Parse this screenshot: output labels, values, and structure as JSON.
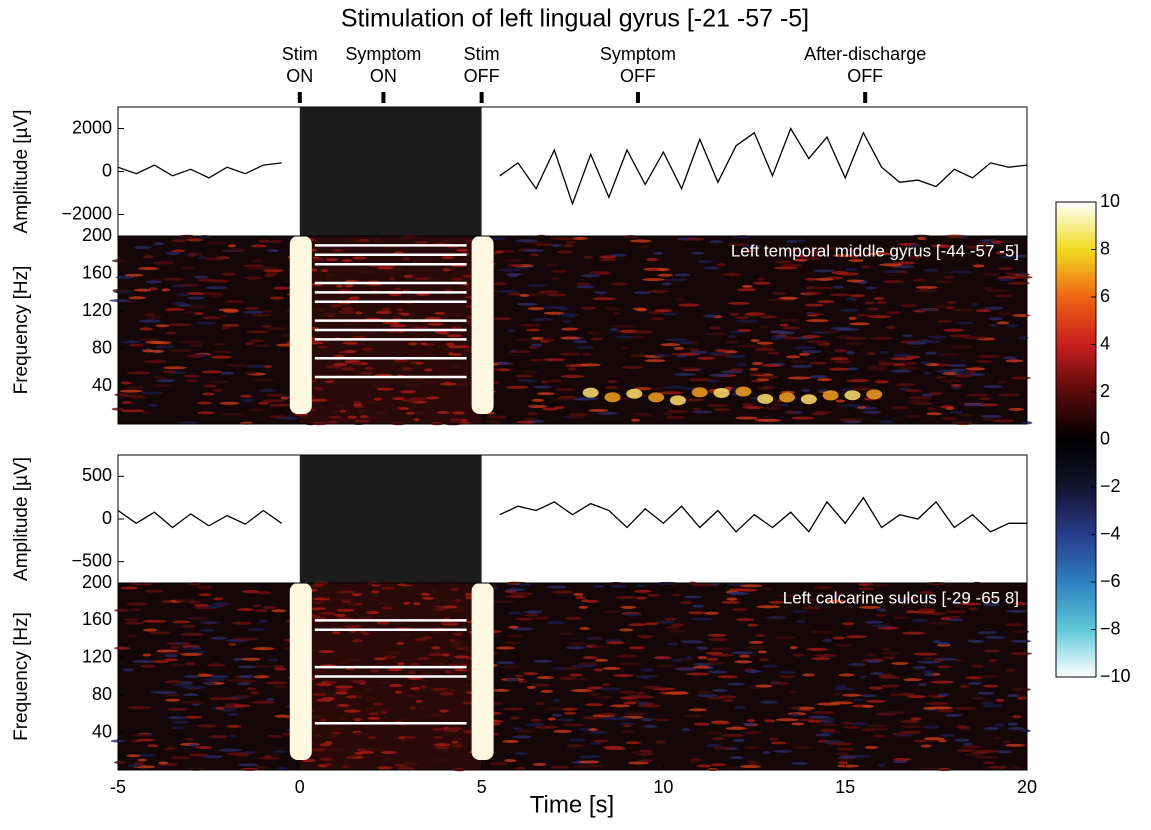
{
  "chart_data": {
    "type": "composite",
    "title": "Stimulation of left lingual gyrus [-21 -57 -5]",
    "xlabel": "Time [s]",
    "xlim": [
      -5,
      20
    ],
    "xticks": [
      -5,
      0,
      5,
      10,
      15,
      20
    ],
    "events": [
      {
        "x": 0,
        "label": [
          "Stim",
          "ON"
        ]
      },
      {
        "x": 2.3,
        "label": [
          "Symptom",
          "ON"
        ]
      },
      {
        "x": 5,
        "label": [
          "Stim",
          "OFF"
        ]
      },
      {
        "x": 9.3,
        "label": [
          "Symptom",
          "OFF"
        ]
      },
      {
        "x": 15.55,
        "label": [
          "After-discharge",
          "OFF"
        ]
      }
    ],
    "x": [
      -5,
      -4.5,
      -4,
      -3.5,
      -3,
      -2.5,
      -2,
      -1.5,
      -1,
      -0.5,
      0,
      0.5,
      1,
      1.5,
      2,
      2.5,
      3,
      3.5,
      4,
      4.5,
      5,
      5.5,
      6,
      6.5,
      7,
      7.5,
      8,
      8.5,
      9,
      9.5,
      10,
      10.5,
      11,
      11.5,
      12,
      12.5,
      13,
      13.5,
      14,
      14.5,
      15,
      15.5,
      16,
      16.5,
      17,
      17.5,
      18,
      18.5,
      19,
      19.5,
      20
    ],
    "panels": [
      {
        "type": "line",
        "ylabel": "Amplitude [µV]",
        "ylim": [
          -3000,
          3000
        ],
        "yticks": [
          {
            "value": -2000,
            "label": "−2000"
          },
          0,
          2000
        ],
        "color": "#000000",
        "values": [
          200,
          -100,
          300,
          -200,
          100,
          -300,
          200,
          -100,
          300,
          400,
          null,
          null,
          null,
          null,
          null,
          null,
          null,
          null,
          null,
          null,
          null,
          -200,
          400,
          -800,
          1000,
          -1500,
          800,
          -1200,
          1000,
          -600,
          900,
          -800,
          1500,
          -500,
          1200,
          1800,
          -200,
          2000,
          600,
          1600,
          -300,
          1800,
          200,
          -500,
          -400,
          -700,
          100,
          -300,
          400,
          200,
          300
        ]
      },
      {
        "type": "heatmap",
        "ylabel": "Frequency [Hz]",
        "region": "Left temporal middle gyrus [-44 -57 -5]",
        "ylim": [
          0,
          200
        ],
        "yticks": [
          40,
          80,
          120,
          160,
          200
        ]
      },
      {
        "type": "line",
        "ylabel": "Amplitude [µV]",
        "ylim": [
          -750,
          750
        ],
        "yticks": [
          {
            "value": -500,
            "label": "−500"
          },
          0,
          500
        ],
        "color": "#000000",
        "values": [
          100,
          -50,
          80,
          -100,
          60,
          -80,
          40,
          -60,
          100,
          -50,
          null,
          null,
          null,
          null,
          null,
          null,
          null,
          null,
          null,
          null,
          null,
          50,
          150,
          100,
          200,
          50,
          180,
          100,
          -100,
          120,
          -50,
          150,
          -100,
          100,
          -150,
          50,
          -100,
          80,
          -150,
          200,
          -50,
          250,
          -100,
          50,
          0,
          200,
          -100,
          50,
          -150,
          -50,
          -50
        ]
      },
      {
        "type": "heatmap",
        "ylabel": "Frequency [Hz]",
        "region": "Left calcarine sulcus [-29 -65 8]",
        "ylim": [
          0,
          200
        ],
        "yticks": [
          40,
          80,
          120,
          160,
          200
        ]
      }
    ],
    "colorbar": {
      "lim": [
        -10,
        10
      ],
      "ticks": [
        {
          "value": -10,
          "label": "−10"
        },
        {
          "value": -8,
          "label": "−8"
        },
        {
          "value": -6,
          "label": "−6"
        },
        {
          "value": -4,
          "label": "−4"
        },
        {
          "value": -2,
          "label": "−2"
        },
        0,
        2,
        4,
        6,
        8,
        10
      ],
      "colors": [
        "#ffffff",
        "#5ec8d8",
        "#2f7fc0",
        "#283c8c",
        "#141430",
        "#000000",
        "#5a0a0a",
        "#c81e1e",
        "#f06414",
        "#f0dc1e",
        "#ffffff"
      ]
    }
  }
}
